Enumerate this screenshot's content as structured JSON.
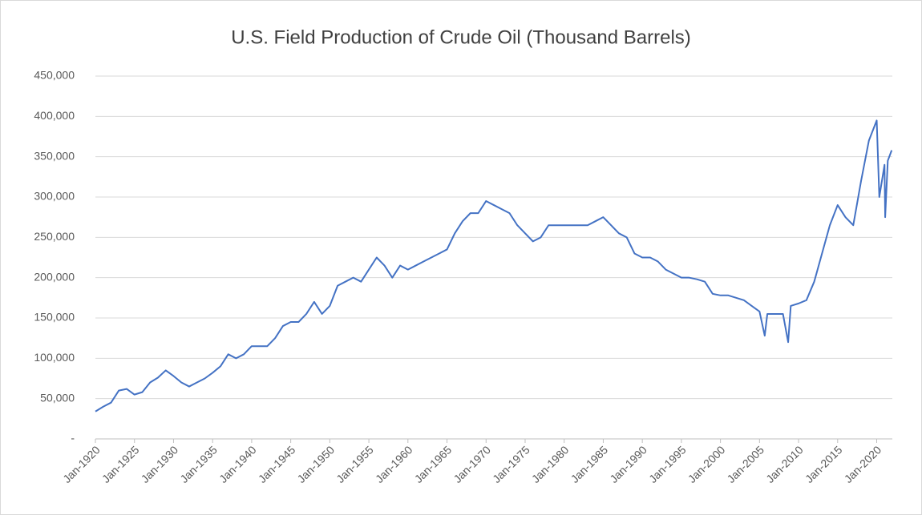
{
  "chart_data": {
    "type": "line",
    "title": "U.S. Field Production of Crude Oil (Thousand Barrels)",
    "x": [
      "1920-01",
      "1921-01",
      "1922-01",
      "1923-01",
      "1924-01",
      "1925-01",
      "1926-01",
      "1927-01",
      "1928-01",
      "1929-01",
      "1930-01",
      "1931-01",
      "1932-01",
      "1933-01",
      "1934-01",
      "1935-01",
      "1936-01",
      "1937-01",
      "1938-01",
      "1939-01",
      "1940-01",
      "1941-01",
      "1942-01",
      "1943-01",
      "1944-01",
      "1945-01",
      "1946-01",
      "1947-01",
      "1948-01",
      "1949-01",
      "1950-01",
      "1951-01",
      "1952-01",
      "1953-01",
      "1954-01",
      "1955-01",
      "1956-01",
      "1957-01",
      "1958-01",
      "1959-01",
      "1960-01",
      "1961-01",
      "1962-01",
      "1963-01",
      "1964-01",
      "1965-01",
      "1966-01",
      "1967-01",
      "1968-01",
      "1969-01",
      "1970-01",
      "1971-01",
      "1972-01",
      "1973-01",
      "1974-01",
      "1975-01",
      "1976-01",
      "1977-01",
      "1978-01",
      "1979-01",
      "1980-01",
      "1981-01",
      "1982-01",
      "1983-01",
      "1984-01",
      "1985-01",
      "1986-01",
      "1987-01",
      "1988-01",
      "1989-01",
      "1990-01",
      "1991-01",
      "1992-01",
      "1993-01",
      "1994-01",
      "1995-01",
      "1996-01",
      "1997-01",
      "1998-01",
      "1999-01",
      "2000-01",
      "2001-01",
      "2002-01",
      "2003-01",
      "2004-01",
      "2005-01",
      "2005-09",
      "2006-01",
      "2007-01",
      "2008-01",
      "2008-09",
      "2009-01",
      "2010-01",
      "2011-01",
      "2012-01",
      "2013-01",
      "2014-01",
      "2015-01",
      "2016-01",
      "2017-01",
      "2018-01",
      "2019-01",
      "2020-01",
      "2020-05",
      "2021-01",
      "2021-02",
      "2021-06",
      "2021-12"
    ],
    "series": [
      {
        "name": "U.S. Field Production of Crude Oil",
        "color": "#4472c4",
        "values": [
          34000,
          40000,
          45000,
          60000,
          62000,
          55000,
          58000,
          70000,
          76000,
          85000,
          78000,
          70000,
          65000,
          70000,
          75000,
          82000,
          90000,
          105000,
          100000,
          105000,
          115000,
          115000,
          115000,
          125000,
          140000,
          145000,
          145000,
          155000,
          170000,
          155000,
          165000,
          190000,
          195000,
          200000,
          195000,
          210000,
          225000,
          215000,
          200000,
          215000,
          210000,
          215000,
          220000,
          225000,
          230000,
          235000,
          255000,
          270000,
          280000,
          280000,
          295000,
          290000,
          285000,
          280000,
          265000,
          255000,
          245000,
          250000,
          265000,
          265000,
          265000,
          265000,
          265000,
          265000,
          270000,
          275000,
          265000,
          255000,
          250000,
          230000,
          225000,
          225000,
          220000,
          210000,
          205000,
          200000,
          200000,
          198000,
          195000,
          180000,
          178000,
          178000,
          175000,
          172000,
          165000,
          158000,
          128000,
          155000,
          155000,
          155000,
          120000,
          165000,
          168000,
          172000,
          195000,
          230000,
          265000,
          290000,
          275000,
          265000,
          320000,
          370000,
          395000,
          300000,
          340000,
          275000,
          345000,
          358000
        ]
      }
    ],
    "xlim": [
      "1920-01",
      "2022-01"
    ],
    "xticks": [
      {
        "value": "1920-01",
        "label": "Jan-1920"
      },
      {
        "value": "1925-01",
        "label": "Jan-1925"
      },
      {
        "value": "1930-01",
        "label": "Jan-1930"
      },
      {
        "value": "1935-01",
        "label": "Jan-1935"
      },
      {
        "value": "1940-01",
        "label": "Jan-1940"
      },
      {
        "value": "1945-01",
        "label": "Jan-1945"
      },
      {
        "value": "1950-01",
        "label": "Jan-1950"
      },
      {
        "value": "1955-01",
        "label": "Jan-1955"
      },
      {
        "value": "1960-01",
        "label": "Jan-1960"
      },
      {
        "value": "1965-01",
        "label": "Jan-1965"
      },
      {
        "value": "1970-01",
        "label": "Jan-1970"
      },
      {
        "value": "1975-01",
        "label": "Jan-1975"
      },
      {
        "value": "1980-01",
        "label": "Jan-1980"
      },
      {
        "value": "1985-01",
        "label": "Jan-1985"
      },
      {
        "value": "1990-01",
        "label": "Jan-1990"
      },
      {
        "value": "1995-01",
        "label": "Jan-1995"
      },
      {
        "value": "2000-01",
        "label": "Jan-2000"
      },
      {
        "value": "2005-01",
        "label": "Jan-2005"
      },
      {
        "value": "2010-01",
        "label": "Jan-2010"
      },
      {
        "value": "2015-01",
        "label": "Jan-2015"
      },
      {
        "value": "2020-01",
        "label": "Jan-2020"
      }
    ],
    "ylim": [
      0,
      450000
    ],
    "yticks": [
      {
        "value": 0,
        "label": "-"
      },
      {
        "value": 50000,
        "label": "50,000"
      },
      {
        "value": 100000,
        "label": "100,000"
      },
      {
        "value": 150000,
        "label": "150,000"
      },
      {
        "value": 200000,
        "label": "200,000"
      },
      {
        "value": 250000,
        "label": "250,000"
      },
      {
        "value": 300000,
        "label": "300,000"
      },
      {
        "value": 350000,
        "label": "350,000"
      },
      {
        "value": 400000,
        "label": "400,000"
      },
      {
        "value": 450000,
        "label": "450,000"
      }
    ],
    "grid": true
  }
}
